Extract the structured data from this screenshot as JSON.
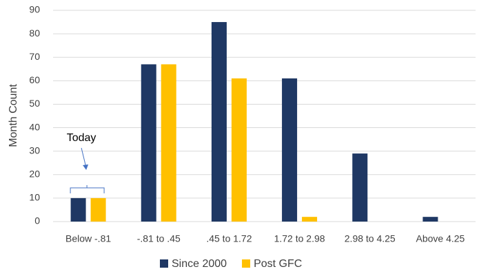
{
  "chart_data": {
    "type": "bar",
    "y_label": "Month Count",
    "annotation": "Today",
    "categories": [
      "Below -.81",
      "-.81 to .45",
      ".45 to 1.72",
      "1.72 to 2.98",
      "2.98 to 4.25",
      "Above 4.25"
    ],
    "series": [
      {
        "name": "Since 2000",
        "color": "#1f3864",
        "values": [
          10,
          67,
          85,
          61,
          29,
          2
        ]
      },
      {
        "name": "Post GFC",
        "color": "#ffc000",
        "values": [
          10,
          67,
          61,
          2,
          0,
          0
        ]
      }
    ],
    "ylim": [
      0,
      90
    ],
    "yticks": [
      0,
      10,
      20,
      30,
      40,
      50,
      60,
      70,
      80,
      90
    ],
    "grid": true,
    "legend": "bottom"
  }
}
